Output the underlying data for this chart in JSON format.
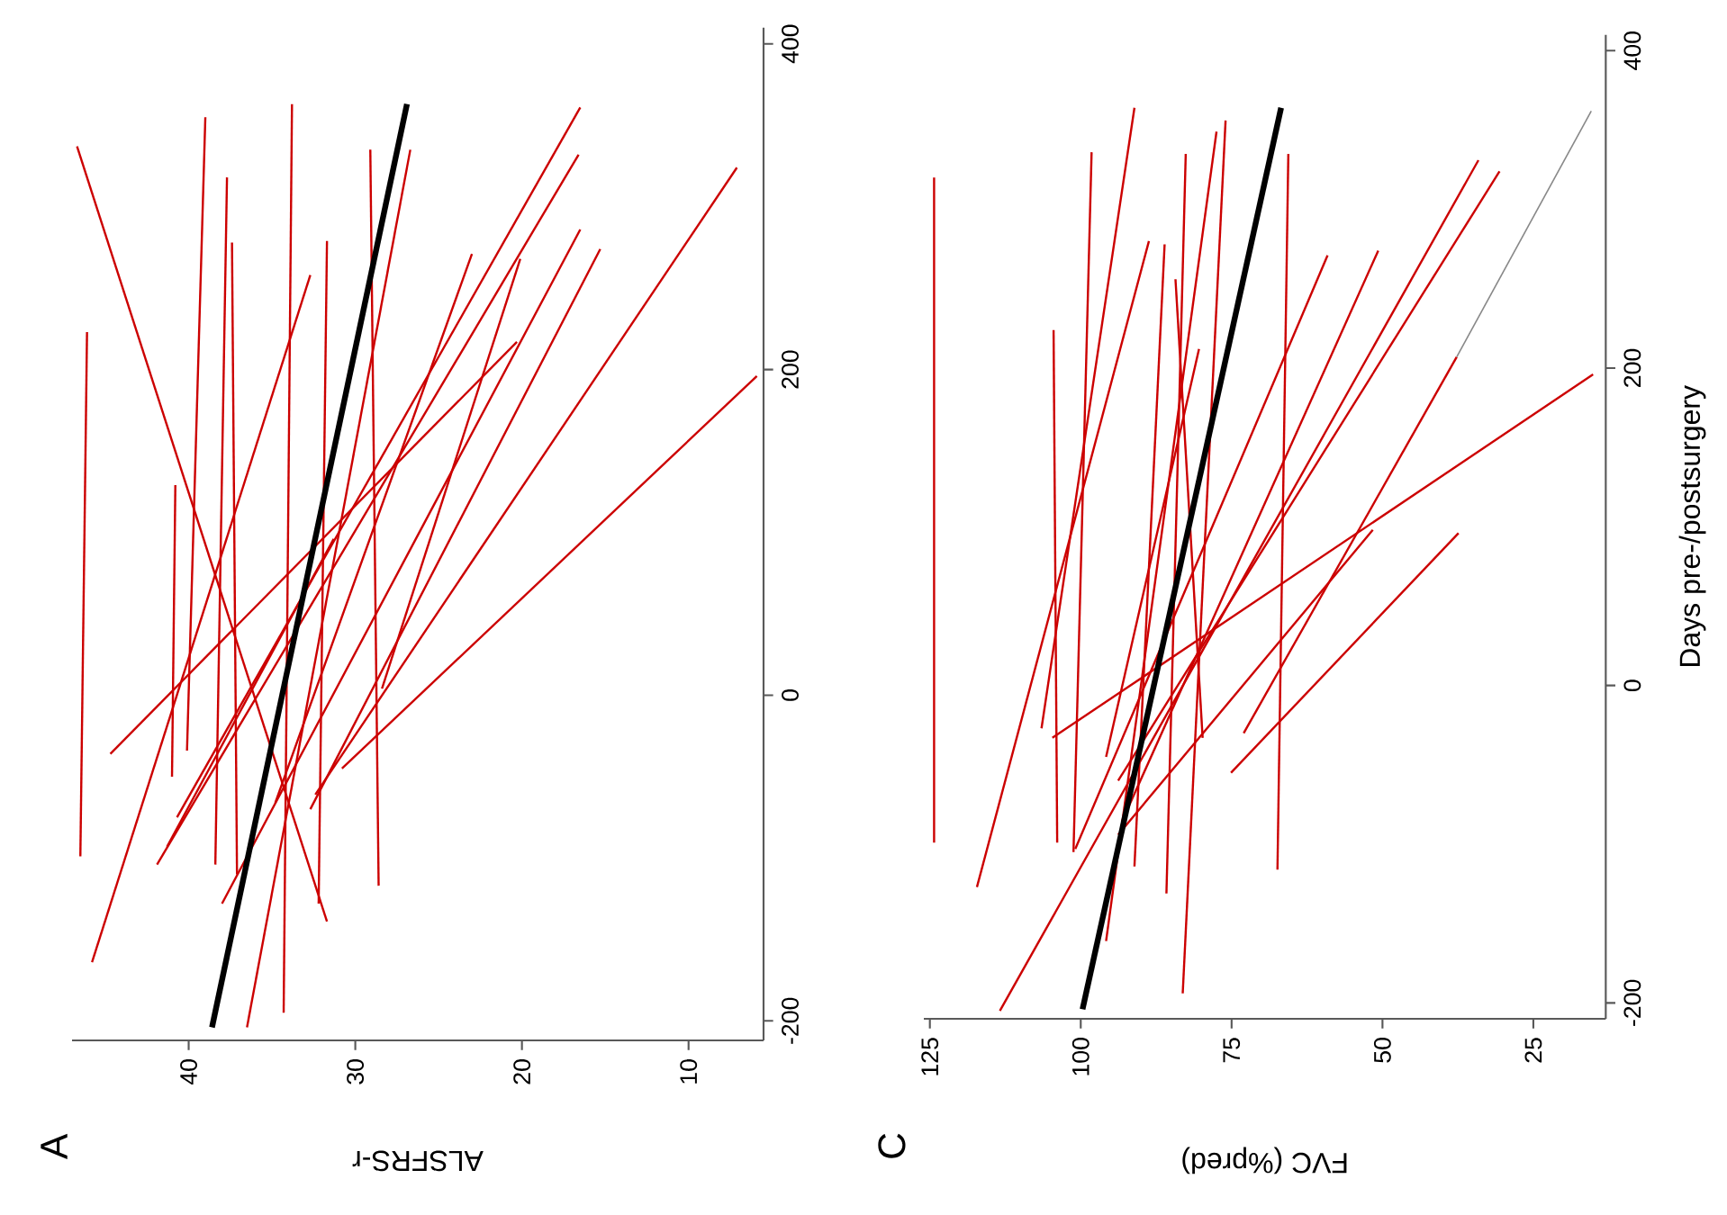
{
  "chart_data": [
    {
      "type": "line",
      "title": "A",
      "xlabel": "ALSFRS-r",
      "ylim": [
        -212,
        410
      ],
      "xlim": [
        47,
        5.5
      ],
      "yticks": [
        -200,
        0,
        200,
        400
      ],
      "xticks": [
        40,
        30,
        20,
        10
      ],
      "series": [
        {
          "color": "#cc0000",
          "x": [
            46.5,
            46.1
          ],
          "values": [
            -99,
            223
          ]
        },
        {
          "color": "#cc0000",
          "x": [
            31.7,
            46.7
          ],
          "values": [
            -139,
            337
          ]
        },
        {
          "color": "#cc0000",
          "x": [
            40.1,
            39.0
          ],
          "values": [
            -34,
            355
          ]
        },
        {
          "color": "#cc0000",
          "x": [
            38.4,
            37.7
          ],
          "values": [
            -104,
            318
          ]
        },
        {
          "color": "#cc0000",
          "x": [
            37.1,
            37.4
          ],
          "values": [
            -110,
            278
          ]
        },
        {
          "color": "#cc0000",
          "x": [
            34.3,
            33.8
          ],
          "values": [
            -195,
            363
          ]
        },
        {
          "color": "#cc0000",
          "x": [
            28.6,
            29.1
          ],
          "values": [
            -117,
            335
          ]
        },
        {
          "color": "#cc0000",
          "x": [
            36.5,
            26.7
          ],
          "values": [
            -204,
            335
          ]
        },
        {
          "color": "#cc0000",
          "x": [
            40.7,
            16.5
          ],
          "values": [
            -75,
            361
          ]
        },
        {
          "color": "#cc0000",
          "x": [
            41.9,
            16.6
          ],
          "values": [
            -104,
            332
          ]
        },
        {
          "color": "#cc0000",
          "x": [
            38.0,
            16.5
          ],
          "values": [
            -128,
            286
          ]
        },
        {
          "color": "#cc0000",
          "x": [
            32.7,
            15.3
          ],
          "values": [
            -70,
            274
          ]
        },
        {
          "color": "#cc0000",
          "x": [
            32.4,
            7.1
          ],
          "values": [
            -61,
            324
          ]
        },
        {
          "color": "#cc0000",
          "x": [
            30.8,
            5.9
          ],
          "values": [
            -45,
            196
          ]
        },
        {
          "color": "#cc0000",
          "x": [
            34.8,
            23.0
          ],
          "values": [
            -66,
            271
          ]
        },
        {
          "color": "#cc0000",
          "x": [
            28.4,
            20.1
          ],
          "values": [
            4,
            268
          ]
        },
        {
          "color": "#cc0000",
          "x": [
            44.7,
            20.3
          ],
          "values": [
            -36,
            217
          ]
        },
        {
          "color": "#cc0000",
          "x": [
            32.2,
            31.7
          ],
          "values": [
            -128,
            279
          ]
        },
        {
          "color": "#cc0000",
          "x": [
            45.8,
            32.7
          ],
          "values": [
            -164,
            258
          ]
        },
        {
          "color": "#cc0000",
          "x": [
            41.0,
            40.8
          ],
          "values": [
            -50,
            129
          ]
        },
        {
          "color": "#cc0000",
          "x": [
            41.3,
            31.3
          ],
          "values": [
            -93,
            96
          ]
        },
        {
          "color": "#000000",
          "x": [
            38.6,
            26.9
          ],
          "values": [
            -204,
            363
          ]
        }
      ]
    },
    {
      "type": "line",
      "title": "C",
      "ylabel": "Days pre-/postsurgery",
      "xlabel": "FVC (%pred)",
      "ylim": [
        -210,
        410
      ],
      "xlim": [
        126,
        13
      ],
      "yticks": [
        -200,
        0,
        200,
        400
      ],
      "xticks": [
        125,
        100,
        75,
        50,
        25
      ],
      "series": [
        {
          "color": "#cc0000",
          "x": [
            124.3,
            124.3
          ],
          "values": [
            -99,
            320
          ]
        },
        {
          "color": "#cc0000",
          "x": [
            103.9,
            104.5
          ],
          "values": [
            -99,
            224
          ]
        },
        {
          "color": "#cc0000",
          "x": [
            101.2,
            98.2
          ],
          "values": [
            -105,
            336
          ]
        },
        {
          "color": "#cc0000",
          "x": [
            106.5,
            91.1
          ],
          "values": [
            -27,
            364
          ]
        },
        {
          "color": "#cc0000",
          "x": [
            117.2,
            88.7
          ],
          "values": [
            -127,
            280
          ]
        },
        {
          "color": "#cc0000",
          "x": [
            91.1,
            86.1
          ],
          "values": [
            -114,
            278
          ]
        },
        {
          "color": "#cc0000",
          "x": [
            85.8,
            82.6
          ],
          "values": [
            -131,
            335
          ]
        },
        {
          "color": "#cc0000",
          "x": [
            95.8,
            77.5
          ],
          "values": [
            -161,
            349
          ]
        },
        {
          "color": "#cc0000",
          "x": [
            83.1,
            76.0
          ],
          "values": [
            -194,
            356
          ]
        },
        {
          "color": "#cc0000",
          "x": [
            67.4,
            65.6
          ],
          "values": [
            -116,
            335
          ]
        },
        {
          "color": "#cc0000",
          "x": [
            100.9,
            59.1
          ],
          "values": [
            -103,
            271
          ]
        },
        {
          "color": "#cc0000",
          "x": [
            93.2,
            50.7
          ],
          "values": [
            -86,
            274
          ]
        },
        {
          "color": "#cc0000",
          "x": [
            113.4,
            34.1
          ],
          "values": [
            -205,
            331
          ]
        },
        {
          "color": "#cc0000",
          "x": [
            93.8,
            30.6
          ],
          "values": [
            -60,
            324
          ]
        },
        {
          "color": "#cc0000",
          "x": [
            104.7,
            15.1
          ],
          "values": [
            -33,
            196
          ]
        },
        {
          "color": "#cc0000",
          "x": [
            75.1,
            37.4
          ],
          "values": [
            -55,
            96
          ]
        },
        {
          "color": "#cc0000",
          "x": [
            93.8,
            51.6
          ],
          "values": [
            -94,
            98
          ]
        },
        {
          "color": "#cc0000",
          "x": [
            79.8,
            84.3
          ],
          "values": [
            -33,
            256
          ]
        },
        {
          "color": "#cc0000",
          "x": [
            95.8,
            80.4
          ],
          "values": [
            -45,
            212
          ]
        },
        {
          "color": "#cc0000",
          "x": [
            73.0,
            37.7
          ],
          "values": [
            -30,
            207
          ]
        },
        {
          "color": "#888888",
          "x": [
            37.7,
            15.4
          ],
          "values": [
            207,
            362
          ]
        },
        {
          "color": "#000000",
          "x": [
            99.7,
            66.8
          ],
          "values": [
            -204,
            364
          ]
        }
      ]
    }
  ]
}
